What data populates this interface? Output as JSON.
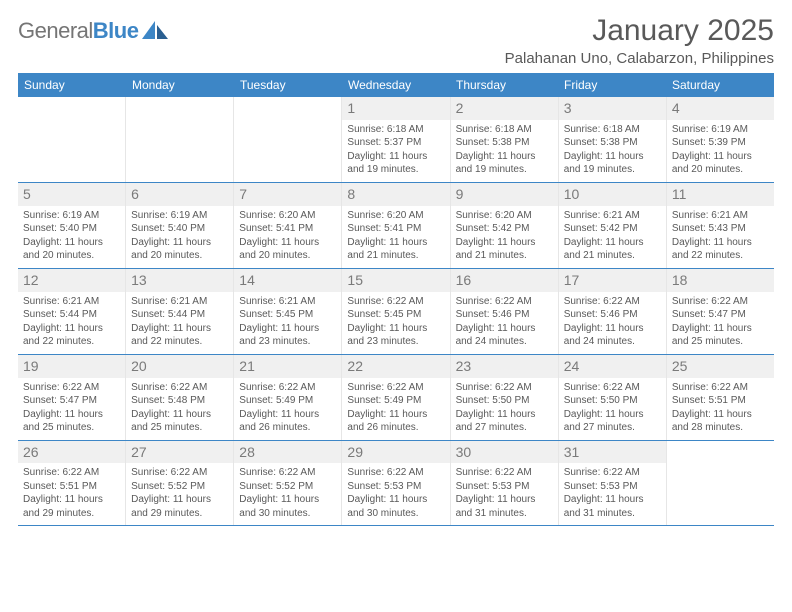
{
  "logo": {
    "text_a": "General",
    "text_b": "Blue"
  },
  "header": {
    "title": "January 2025",
    "location": "Palahanan Uno, Calabarzon, Philippines"
  },
  "colors": {
    "brand_blue": "#3d86c6",
    "text_gray": "#595959",
    "cell_bg": "#f0f0f0"
  },
  "day_labels": [
    "Sunday",
    "Monday",
    "Tuesday",
    "Wednesday",
    "Thursday",
    "Friday",
    "Saturday"
  ],
  "weeks": [
    [
      {
        "empty": true
      },
      {
        "empty": true
      },
      {
        "empty": true
      },
      {
        "n": "1",
        "sr": "6:18 AM",
        "ss": "5:37 PM",
        "dl": "11 hours and 19 minutes."
      },
      {
        "n": "2",
        "sr": "6:18 AM",
        "ss": "5:38 PM",
        "dl": "11 hours and 19 minutes."
      },
      {
        "n": "3",
        "sr": "6:18 AM",
        "ss": "5:38 PM",
        "dl": "11 hours and 19 minutes."
      },
      {
        "n": "4",
        "sr": "6:19 AM",
        "ss": "5:39 PM",
        "dl": "11 hours and 20 minutes."
      }
    ],
    [
      {
        "n": "5",
        "sr": "6:19 AM",
        "ss": "5:40 PM",
        "dl": "11 hours and 20 minutes."
      },
      {
        "n": "6",
        "sr": "6:19 AM",
        "ss": "5:40 PM",
        "dl": "11 hours and 20 minutes."
      },
      {
        "n": "7",
        "sr": "6:20 AM",
        "ss": "5:41 PM",
        "dl": "11 hours and 20 minutes."
      },
      {
        "n": "8",
        "sr": "6:20 AM",
        "ss": "5:41 PM",
        "dl": "11 hours and 21 minutes."
      },
      {
        "n": "9",
        "sr": "6:20 AM",
        "ss": "5:42 PM",
        "dl": "11 hours and 21 minutes."
      },
      {
        "n": "10",
        "sr": "6:21 AM",
        "ss": "5:42 PM",
        "dl": "11 hours and 21 minutes."
      },
      {
        "n": "11",
        "sr": "6:21 AM",
        "ss": "5:43 PM",
        "dl": "11 hours and 22 minutes."
      }
    ],
    [
      {
        "n": "12",
        "sr": "6:21 AM",
        "ss": "5:44 PM",
        "dl": "11 hours and 22 minutes."
      },
      {
        "n": "13",
        "sr": "6:21 AM",
        "ss": "5:44 PM",
        "dl": "11 hours and 22 minutes."
      },
      {
        "n": "14",
        "sr": "6:21 AM",
        "ss": "5:45 PM",
        "dl": "11 hours and 23 minutes."
      },
      {
        "n": "15",
        "sr": "6:22 AM",
        "ss": "5:45 PM",
        "dl": "11 hours and 23 minutes."
      },
      {
        "n": "16",
        "sr": "6:22 AM",
        "ss": "5:46 PM",
        "dl": "11 hours and 24 minutes."
      },
      {
        "n": "17",
        "sr": "6:22 AM",
        "ss": "5:46 PM",
        "dl": "11 hours and 24 minutes."
      },
      {
        "n": "18",
        "sr": "6:22 AM",
        "ss": "5:47 PM",
        "dl": "11 hours and 25 minutes."
      }
    ],
    [
      {
        "n": "19",
        "sr": "6:22 AM",
        "ss": "5:47 PM",
        "dl": "11 hours and 25 minutes."
      },
      {
        "n": "20",
        "sr": "6:22 AM",
        "ss": "5:48 PM",
        "dl": "11 hours and 25 minutes."
      },
      {
        "n": "21",
        "sr": "6:22 AM",
        "ss": "5:49 PM",
        "dl": "11 hours and 26 minutes."
      },
      {
        "n": "22",
        "sr": "6:22 AM",
        "ss": "5:49 PM",
        "dl": "11 hours and 26 minutes."
      },
      {
        "n": "23",
        "sr": "6:22 AM",
        "ss": "5:50 PM",
        "dl": "11 hours and 27 minutes."
      },
      {
        "n": "24",
        "sr": "6:22 AM",
        "ss": "5:50 PM",
        "dl": "11 hours and 27 minutes."
      },
      {
        "n": "25",
        "sr": "6:22 AM",
        "ss": "5:51 PM",
        "dl": "11 hours and 28 minutes."
      }
    ],
    [
      {
        "n": "26",
        "sr": "6:22 AM",
        "ss": "5:51 PM",
        "dl": "11 hours and 29 minutes."
      },
      {
        "n": "27",
        "sr": "6:22 AM",
        "ss": "5:52 PM",
        "dl": "11 hours and 29 minutes."
      },
      {
        "n": "28",
        "sr": "6:22 AM",
        "ss": "5:52 PM",
        "dl": "11 hours and 30 minutes."
      },
      {
        "n": "29",
        "sr": "6:22 AM",
        "ss": "5:53 PM",
        "dl": "11 hours and 30 minutes."
      },
      {
        "n": "30",
        "sr": "6:22 AM",
        "ss": "5:53 PM",
        "dl": "11 hours and 31 minutes."
      },
      {
        "n": "31",
        "sr": "6:22 AM",
        "ss": "5:53 PM",
        "dl": "11 hours and 31 minutes."
      },
      {
        "empty": true
      }
    ]
  ],
  "labels": {
    "sunrise": "Sunrise:",
    "sunset": "Sunset:",
    "daylight": "Daylight:"
  }
}
